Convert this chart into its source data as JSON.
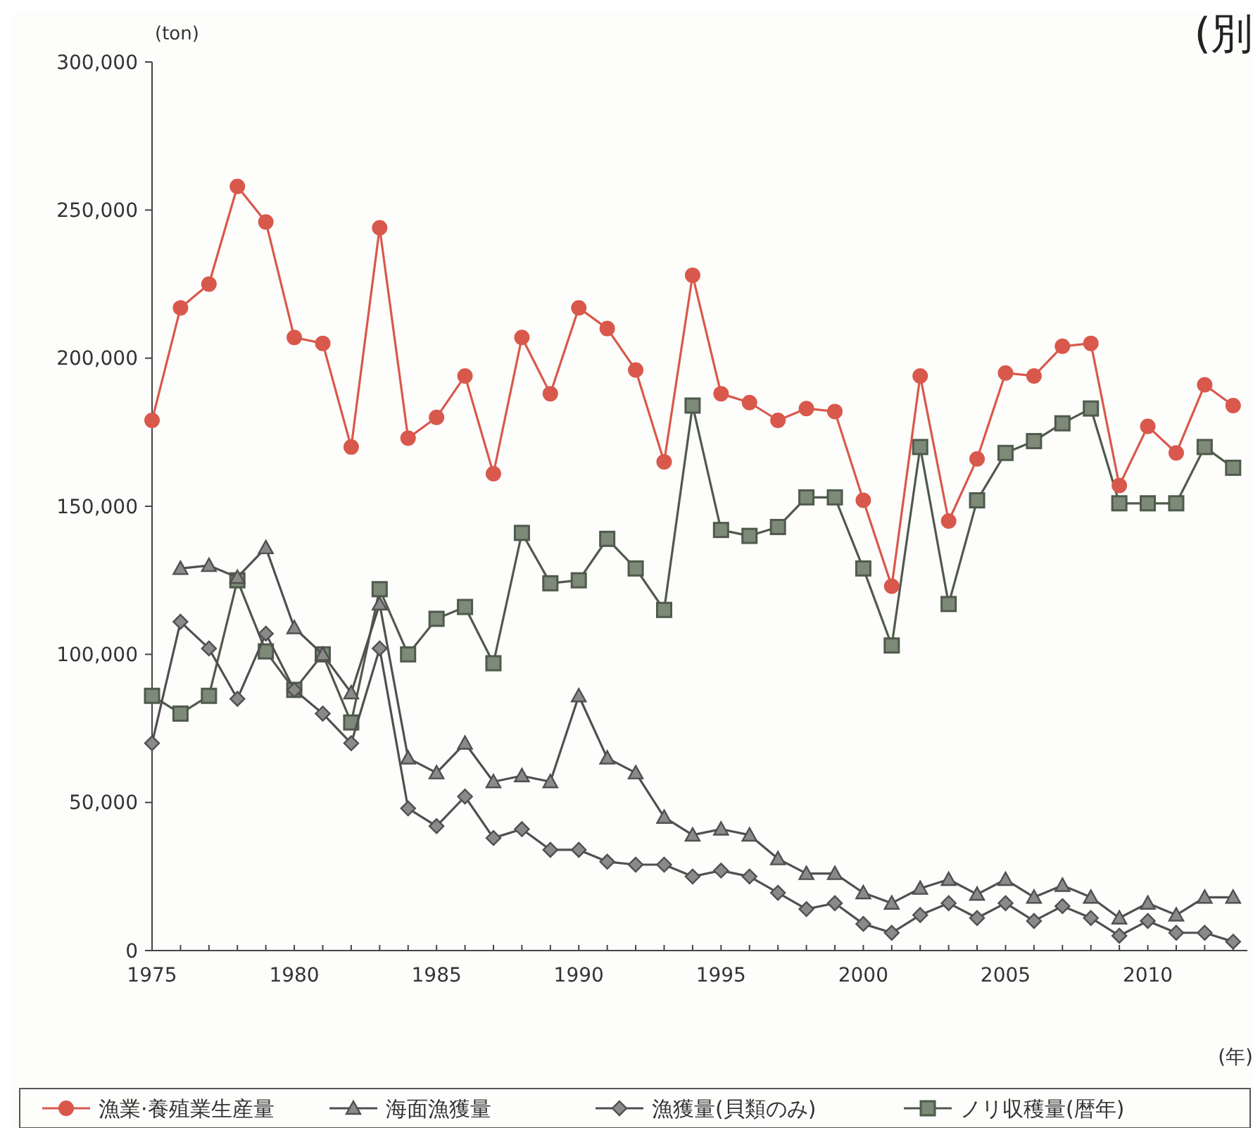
{
  "chart_data": {
    "type": "line",
    "ylabel": "(ton)",
    "xlabel": "(年)",
    "annotations": [
      "(別"
    ],
    "x": [
      1975,
      1976,
      1977,
      1978,
      1979,
      1980,
      1981,
      1982,
      1983,
      1984,
      1985,
      1986,
      1987,
      1988,
      1989,
      1990,
      1991,
      1992,
      1993,
      1994,
      1995,
      1996,
      1997,
      1998,
      1999,
      2000,
      2001,
      2002,
      2003,
      2004,
      2005,
      2006,
      2007,
      2008,
      2009,
      2010,
      2011,
      2012,
      2013
    ],
    "xlim": [
      1975,
      2013.5
    ],
    "xticks": [
      1975,
      {
        "value": 1976,
        "label": null
      },
      {
        "value": 1977,
        "label": null
      },
      {
        "value": 1978,
        "label": null
      },
      {
        "value": 1979,
        "label": null
      },
      1980,
      {
        "value": 1981,
        "label": null
      },
      {
        "value": 1982,
        "label": null
      },
      {
        "value": 1983,
        "label": null
      },
      {
        "value": 1984,
        "label": null
      },
      1985,
      {
        "value": 1986,
        "label": null
      },
      {
        "value": 1987,
        "label": null
      },
      {
        "value": 1988,
        "label": null
      },
      {
        "value": 1989,
        "label": null
      },
      1990,
      {
        "value": 1991,
        "label": null
      },
      {
        "value": 1992,
        "label": null
      },
      {
        "value": 1993,
        "label": null
      },
      {
        "value": 1994,
        "label": null
      },
      1995,
      {
        "value": 1996,
        "label": null
      },
      {
        "value": 1997,
        "label": null
      },
      {
        "value": 1998,
        "label": null
      },
      {
        "value": 1999,
        "label": null
      },
      2000,
      {
        "value": 2001,
        "label": null
      },
      {
        "value": 2002,
        "label": null
      },
      {
        "value": 2003,
        "label": null
      },
      {
        "value": 2004,
        "label": null
      },
      2005,
      {
        "value": 2006,
        "label": null
      },
      {
        "value": 2007,
        "label": null
      },
      {
        "value": 2008,
        "label": null
      },
      {
        "value": 2009,
        "label": null
      },
      2010,
      {
        "value": 2011,
        "label": null
      },
      {
        "value": 2012,
        "label": null
      },
      {
        "value": 2013,
        "label": null
      }
    ],
    "ylim": [
      0,
      300000
    ],
    "yticks": [
      0,
      {
        "value": 50000,
        "label": "50,000"
      },
      {
        "value": 100000,
        "label": "100,000"
      },
      {
        "value": 150000,
        "label": "150,000"
      },
      {
        "value": 200000,
        "label": "200,000"
      },
      {
        "value": 250000,
        "label": "250,000"
      },
      {
        "value": 300000,
        "label": "300,000"
      }
    ],
    "grid": false,
    "legend": "bottom",
    "line_style": "solid",
    "series": [
      {
        "name": "漁業·養殖業生産量",
        "color": "#d9584c",
        "marker": "circle",
        "values": [
          179000,
          217000,
          225000,
          258000,
          246000,
          207000,
          205000,
          170000,
          244000,
          173000,
          180000,
          194000,
          161000,
          207000,
          188000,
          217000,
          210000,
          196000,
          165000,
          228000,
          188000,
          185000,
          179000,
          183000,
          182000,
          152000,
          123000,
          194000,
          145000,
          166000,
          195000,
          194000,
          204000,
          205000,
          157000,
          177000,
          168000,
          191000,
          184000
        ]
      },
      {
        "name": "海面漁獲量",
        "color": "#505050",
        "marker": "triangle",
        "values": [
          null,
          129000,
          130000,
          126000,
          136000,
          109000,
          100000,
          87000,
          117000,
          65000,
          60000,
          70000,
          57000,
          59000,
          57000,
          86000,
          65000,
          60000,
          45000,
          39000,
          41000,
          39000,
          31000,
          26000,
          26000,
          19500,
          16000,
          21000,
          24000,
          19000,
          24000,
          18000,
          22000,
          18000,
          11000,
          16000,
          12000,
          18000,
          18000
        ]
      },
      {
        "name": "漁獲量(貝類のみ)",
        "color": "#505050",
        "marker": "diamond",
        "values": [
          70000,
          111000,
          102000,
          85000,
          107000,
          88000,
          80000,
          70000,
          102000,
          48000,
          42000,
          52000,
          38000,
          41000,
          34000,
          34000,
          30000,
          29000,
          29000,
          25000,
          27000,
          25000,
          19500,
          14000,
          16000,
          9000,
          6000,
          12000,
          16000,
          11000,
          16000,
          10000,
          15000,
          11000,
          5000,
          10000,
          6000,
          6000,
          3000
        ]
      },
      {
        "name": "ノリ収穫量(暦年)",
        "color": "#4f5a4c",
        "marker": "square",
        "values": [
          86000,
          80000,
          86000,
          125000,
          101000,
          88000,
          100000,
          77000,
          122000,
          100000,
          112000,
          116000,
          97000,
          141000,
          124000,
          125000,
          139000,
          129000,
          115000,
          184000,
          142000,
          140000,
          143000,
          153000,
          153000,
          129000,
          103000,
          170000,
          117000,
          152000,
          168000,
          172000,
          178000,
          183000,
          151000,
          151000,
          151000,
          170000,
          163000
        ]
      }
    ]
  }
}
